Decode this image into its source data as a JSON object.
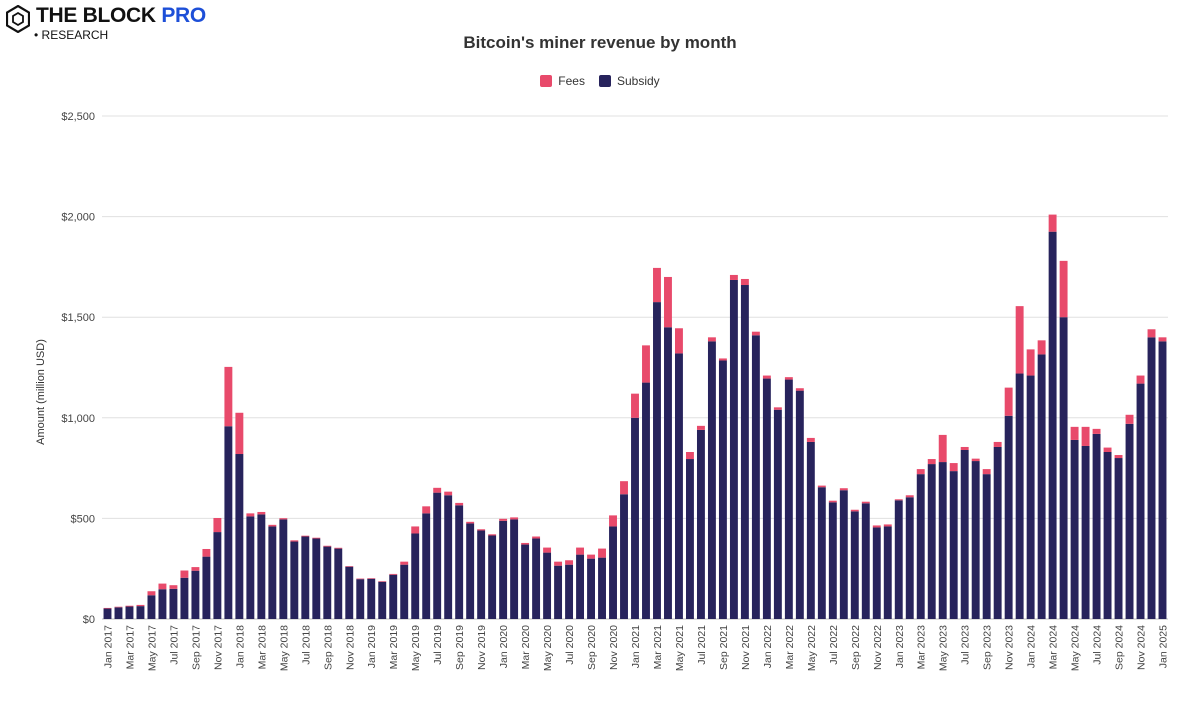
{
  "brand": {
    "title_main": "THE BLOCK",
    "title_accent": "PRO",
    "subtitle": "• RESEARCH",
    "accent_color": "#1d4fd8"
  },
  "chart_data": {
    "type": "bar",
    "stacked": true,
    "title": "Bitcoin's miner revenue by month",
    "xlabel": "",
    "ylabel": "Amount (million USD)",
    "ylim": [
      0,
      2500
    ],
    "yticks": [
      0,
      500,
      1000,
      1500,
      2000,
      2500
    ],
    "ytick_labels": [
      "$0",
      "$500",
      "$1,000",
      "$1,500",
      "$2,000",
      "$2,500"
    ],
    "grid": true,
    "legend_position": "top-center",
    "categories": [
      "Jan 2017",
      "Feb 2017",
      "Mar 2017",
      "Apr 2017",
      "May 2017",
      "Jun 2017",
      "Jul 2017",
      "Aug 2017",
      "Sep 2017",
      "Oct 2017",
      "Nov 2017",
      "Dec 2017",
      "Jan 2018",
      "Feb 2018",
      "Mar 2018",
      "Apr 2018",
      "May 2018",
      "Jun 2018",
      "Jul 2018",
      "Aug 2018",
      "Sep 2018",
      "Oct 2018",
      "Nov 2018",
      "Dec 2018",
      "Jan 2019",
      "Feb 2019",
      "Mar 2019",
      "Apr 2019",
      "May 2019",
      "Jun 2019",
      "Jul 2019",
      "Aug 2019",
      "Sep 2019",
      "Oct 2019",
      "Nov 2019",
      "Dec 2019",
      "Jan 2020",
      "Feb 2020",
      "Mar 2020",
      "Apr 2020",
      "May 2020",
      "Jun 2020",
      "Jul 2020",
      "Aug 2020",
      "Sep 2020",
      "Oct 2020",
      "Nov 2020",
      "Dec 2020",
      "Jan 2021",
      "Feb 2021",
      "Mar 2021",
      "Apr 2021",
      "May 2021",
      "Jun 2021",
      "Jul 2021",
      "Aug 2021",
      "Sep 2021",
      "Oct 2021",
      "Nov 2021",
      "Dec 2021",
      "Jan 2022",
      "Feb 2022",
      "Mar 2022",
      "Apr 2022",
      "May 2022",
      "Jun 2022",
      "Jul 2022",
      "Aug 2022",
      "Sep 2022",
      "Oct 2022",
      "Nov 2022",
      "Dec 2022",
      "Jan 2023",
      "Feb 2023",
      "Mar 2023",
      "Apr 2023",
      "May 2023",
      "Jun 2023",
      "Jul 2023",
      "Aug 2023",
      "Sep 2023",
      "Oct 2023",
      "Nov 2023",
      "Dec 2023",
      "Jan 2024",
      "Feb 2024",
      "Mar 2024",
      "Apr 2024",
      "May 2024",
      "Jun 2024",
      "Jul 2024",
      "Aug 2024",
      "Sep 2024",
      "Oct 2024",
      "Nov 2024",
      "Dec 2024",
      "Jan 2025"
    ],
    "x_tick_labels": [
      "Jan 2017",
      "Mar 2017",
      "May 2017",
      "Jul 2017",
      "Sep 2017",
      "Nov 2017",
      "Jan 2018",
      "Mar 2018",
      "May 2018",
      "Jul 2018",
      "Sep 2018",
      "Nov 2018",
      "Jan 2019",
      "Mar 2019",
      "May 2019",
      "Jul 2019",
      "Sep 2019",
      "Nov 2019",
      "Jan 2020",
      "Mar 2020",
      "May 2020",
      "Jul 2020",
      "Sep 2020",
      "Nov 2020",
      "Jan 2021",
      "Mar 2021",
      "May 2021",
      "Jul 2021",
      "Sep 2021",
      "Nov 2021",
      "Jan 2022",
      "Mar 2022",
      "May 2022",
      "Jul 2022",
      "Sep 2022",
      "Nov 2022",
      "Jan 2023",
      "Mar 2023",
      "May 2023",
      "Jul 2023",
      "Sep 2023",
      "Nov 2023",
      "Jan 2024",
      "Mar 2024",
      "May 2024",
      "Jul 2024",
      "Sep 2024",
      "Nov 2024",
      "Jan 2025"
    ],
    "series": [
      {
        "name": "Subsidy",
        "color": "#27235c",
        "values": [
          52,
          58,
          62,
          64,
          118,
          148,
          150,
          205,
          240,
          310,
          432,
          958,
          820,
          510,
          520,
          460,
          495,
          385,
          410,
          400,
          360,
          350,
          260,
          198,
          200,
          185,
          220,
          270,
          425,
          525,
          628,
          615,
          565,
          475,
          440,
          415,
          488,
          495,
          370,
          400,
          330,
          265,
          270,
          320,
          300,
          305,
          460,
          620,
          1000,
          1175,
          1575,
          1450,
          1320,
          795,
          940,
          1380,
          1285,
          1685,
          1660,
          1410,
          1195,
          1040,
          1190,
          1135,
          880,
          655,
          580,
          640,
          535,
          575,
          455,
          460,
          590,
          605,
          720,
          770,
          780,
          735,
          840,
          785,
          720,
          855,
          1010,
          1220,
          1210,
          1315,
          1925,
          1500,
          890,
          860,
          920,
          830,
          800,
          970,
          1170,
          1400,
          1380
        ]
      },
      {
        "name": "Fees",
        "color": "#e84a6b",
        "values": [
          3,
          3,
          4,
          6,
          20,
          28,
          18,
          36,
          18,
          38,
          70,
          295,
          205,
          15,
          12,
          8,
          6,
          6,
          4,
          4,
          4,
          4,
          3,
          3,
          3,
          3,
          4,
          15,
          35,
          35,
          24,
          18,
          12,
          8,
          6,
          6,
          10,
          10,
          8,
          10,
          25,
          20,
          22,
          35,
          20,
          45,
          55,
          65,
          120,
          185,
          170,
          250,
          125,
          35,
          20,
          20,
          10,
          25,
          30,
          18,
          15,
          12,
          12,
          12,
          20,
          8,
          8,
          10,
          8,
          8,
          10,
          10,
          5,
          10,
          25,
          25,
          135,
          40,
          15,
          12,
          25,
          25,
          140,
          335,
          130,
          70,
          85,
          280,
          65,
          95,
          25,
          22,
          15,
          45,
          40,
          40,
          20
        ]
      }
    ]
  }
}
